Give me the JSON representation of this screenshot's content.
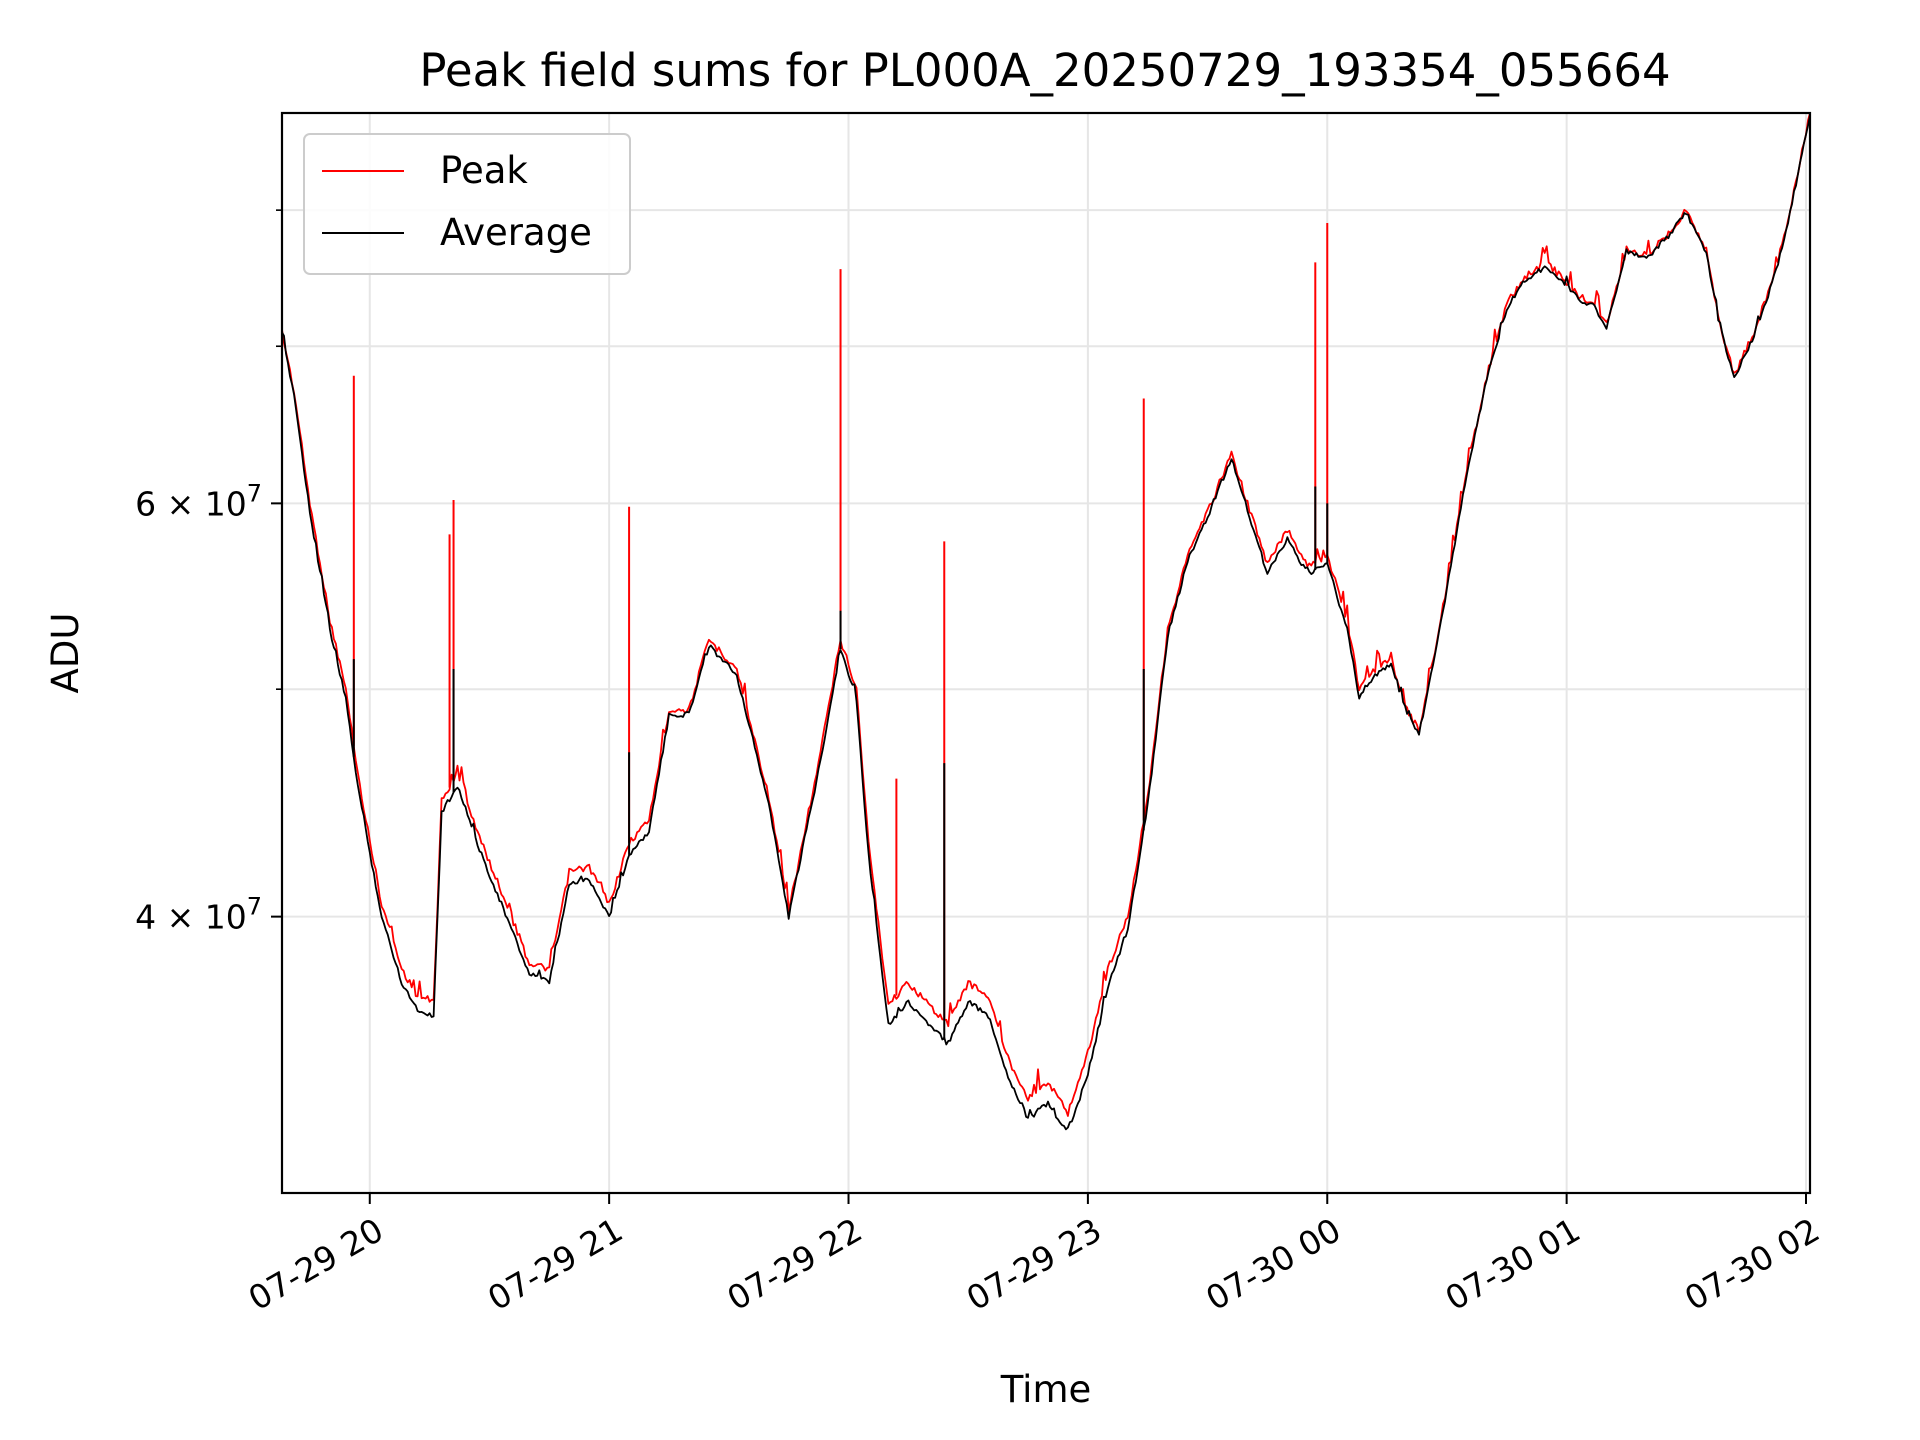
{
  "chart_data": {
    "type": "line",
    "title": "Peak field sums for PL000A_20250729_193354_055664",
    "xlabel": "Time",
    "ylabel": "ADU",
    "yscale": "log",
    "xlim": [
      "2025-07-29 19:38",
      "2025-07-30 02:01"
    ],
    "ylim": [
      30500000,
      88000000
    ],
    "grid": true,
    "legend_position": "top-left",
    "x_ticks": [
      "07-29 20",
      "07-29 21",
      "07-29 22",
      "07-29 23",
      "07-30 00",
      "07-30 01",
      "07-30 02"
    ],
    "y_ticks": [
      "4 × 10^7",
      "6 × 10^7"
    ],
    "series": [
      {
        "name": "Peak",
        "color": "#ff0000",
        "x": [
          "2025-07-29 19:38",
          "2025-07-29 19:41",
          "2025-07-29 19:45",
          "2025-07-29 19:50",
          "2025-07-29 19:54",
          "2025-07-29 19:57",
          "2025-07-29 19:59",
          "2025-07-29 20:03",
          "2025-07-29 20:08",
          "2025-07-29 20:12",
          "2025-07-29 20:16",
          "2025-07-29 20:18",
          "2025-07-29 20:22",
          "2025-07-29 20:28",
          "2025-07-29 20:33",
          "2025-07-29 20:40",
          "2025-07-29 20:45",
          "2025-07-29 20:50",
          "2025-07-29 20:55",
          "2025-07-29 21:00",
          "2025-07-29 21:05",
          "2025-07-29 21:10",
          "2025-07-29 21:15",
          "2025-07-29 21:20",
          "2025-07-29 21:25",
          "2025-07-29 21:32",
          "2025-07-29 21:40",
          "2025-07-29 21:45",
          "2025-07-29 21:52",
          "2025-07-29 21:58",
          "2025-07-29 22:02",
          "2025-07-29 22:05",
          "2025-07-29 22:10",
          "2025-07-29 22:15",
          "2025-07-29 22:20",
          "2025-07-29 22:25",
          "2025-07-29 22:30",
          "2025-07-29 22:35",
          "2025-07-29 22:40",
          "2025-07-29 22:45",
          "2025-07-29 22:50",
          "2025-07-29 22:55",
          "2025-07-29 23:00",
          "2025-07-29 23:05",
          "2025-07-29 23:10",
          "2025-07-29 23:15",
          "2025-07-29 23:20",
          "2025-07-29 23:25",
          "2025-07-29 23:30",
          "2025-07-29 23:36",
          "2025-07-29 23:40",
          "2025-07-29 23:45",
          "2025-07-29 23:50",
          "2025-07-29 23:55",
          "2025-07-30 00:00",
          "2025-07-30 00:05",
          "2025-07-30 00:08",
          "2025-07-30 00:12",
          "2025-07-30 00:16",
          "2025-07-30 00:20",
          "2025-07-30 00:23",
          "2025-07-30 00:28",
          "2025-07-30 00:35",
          "2025-07-30 00:40",
          "2025-07-30 00:45",
          "2025-07-30 00:50",
          "2025-07-30 00:55",
          "2025-07-30 01:00",
          "2025-07-30 01:03",
          "2025-07-30 01:07",
          "2025-07-30 01:10",
          "2025-07-30 01:15",
          "2025-07-30 01:20",
          "2025-07-30 01:25",
          "2025-07-30 01:30",
          "2025-07-30 01:35",
          "2025-07-30 01:38",
          "2025-07-30 01:42",
          "2025-07-30 01:47",
          "2025-07-30 01:52",
          "2025-07-30 01:56",
          "2025-07-30 02:01"
        ],
        "y": [
          71000000,
          67000000,
          60000000,
          53500000,
          50000000,
          46000000,
          44000000,
          40500000,
          38000000,
          37000000,
          36800000,
          44800000,
          46000000,
          43000000,
          41000000,
          38200000,
          38000000,
          41800000,
          42000000,
          40500000,
          43000000,
          44000000,
          49000000,
          49000000,
          52500000,
          51000000,
          45000000,
          40200000,
          46000000,
          52500000,
          50000000,
          43000000,
          36700000,
          37500000,
          36700000,
          36000000,
          37500000,
          37000000,
          34800000,
          33500000,
          34000000,
          33000000,
          35000000,
          38000000,
          40000000,
          45000000,
          53000000,
          57000000,
          59500000,
          63000000,
          60000000,
          56500000,
          58500000,
          56500000,
          57000000,
          53500000,
          50000000,
          51000000,
          51500000,
          49000000,
          48000000,
          53000000,
          62000000,
          68000000,
          73000000,
          75000000,
          76000000,
          74500000,
          73500000,
          73000000,
          71500000,
          77000000,
          76500000,
          78000000,
          80000000,
          77000000,
          72000000,
          68000000,
          71000000,
          75000000,
          80000000,
          88000000
        ],
        "spikes": [
          {
            "x": "2025-07-29 19:56",
            "y": 68000000
          },
          {
            "x": "2025-07-29 20:20",
            "y": 58200000
          },
          {
            "x": "2025-07-29 20:21",
            "y": 60200000
          },
          {
            "x": "2025-07-29 21:05",
            "y": 59800000
          },
          {
            "x": "2025-07-29 21:58",
            "y": 75500000
          },
          {
            "x": "2025-07-29 22:12",
            "y": 45800000
          },
          {
            "x": "2025-07-29 22:24",
            "y": 57800000
          },
          {
            "x": "2025-07-29 23:14",
            "y": 66500000
          },
          {
            "x": "2025-07-29 23:57",
            "y": 76000000
          },
          {
            "x": "2025-07-30 00:00",
            "y": 79000000
          }
        ]
      },
      {
        "name": "Average",
        "color": "#000000",
        "x": [
          "2025-07-29 19:38",
          "2025-07-29 19:41",
          "2025-07-29 19:45",
          "2025-07-29 19:50",
          "2025-07-29 19:54",
          "2025-07-29 19:57",
          "2025-07-29 19:59",
          "2025-07-29 20:03",
          "2025-07-29 20:08",
          "2025-07-29 20:12",
          "2025-07-29 20:16",
          "2025-07-29 20:18",
          "2025-07-29 20:22",
          "2025-07-29 20:28",
          "2025-07-29 20:33",
          "2025-07-29 20:40",
          "2025-07-29 20:45",
          "2025-07-29 20:50",
          "2025-07-29 20:55",
          "2025-07-29 21:00",
          "2025-07-29 21:05",
          "2025-07-29 21:10",
          "2025-07-29 21:15",
          "2025-07-29 21:20",
          "2025-07-29 21:25",
          "2025-07-29 21:32",
          "2025-07-29 21:40",
          "2025-07-29 21:45",
          "2025-07-29 21:52",
          "2025-07-29 21:58",
          "2025-07-29 22:02",
          "2025-07-29 22:05",
          "2025-07-29 22:10",
          "2025-07-29 22:15",
          "2025-07-29 22:20",
          "2025-07-29 22:25",
          "2025-07-29 22:30",
          "2025-07-29 22:35",
          "2025-07-29 22:40",
          "2025-07-29 22:45",
          "2025-07-29 22:50",
          "2025-07-29 22:55",
          "2025-07-29 23:00",
          "2025-07-29 23:05",
          "2025-07-29 23:10",
          "2025-07-29 23:15",
          "2025-07-29 23:20",
          "2025-07-29 23:25",
          "2025-07-29 23:30",
          "2025-07-29 23:36",
          "2025-07-29 23:40",
          "2025-07-29 23:45",
          "2025-07-29 23:50",
          "2025-07-29 23:55",
          "2025-07-30 00:00",
          "2025-07-30 00:05",
          "2025-07-30 00:08",
          "2025-07-30 00:12",
          "2025-07-30 00:16",
          "2025-07-30 00:20",
          "2025-07-30 00:23",
          "2025-07-30 00:28",
          "2025-07-30 00:35",
          "2025-07-30 00:40",
          "2025-07-30 00:45",
          "2025-07-30 00:50",
          "2025-07-30 00:55",
          "2025-07-30 01:00",
          "2025-07-30 01:03",
          "2025-07-30 01:07",
          "2025-07-30 01:10",
          "2025-07-30 01:15",
          "2025-07-30 01:20",
          "2025-07-30 01:25",
          "2025-07-30 01:30",
          "2025-07-30 01:35",
          "2025-07-30 01:38",
          "2025-07-30 01:42",
          "2025-07-30 01:47",
          "2025-07-30 01:52",
          "2025-07-30 01:56",
          "2025-07-30 02:01"
        ],
        "y": [
          70800000,
          66800000,
          59500000,
          53000000,
          49500000,
          45500000,
          43500000,
          40000000,
          37500000,
          36500000,
          36300000,
          44300000,
          45500000,
          42500000,
          40500000,
          37800000,
          37500000,
          41300000,
          41500000,
          40000000,
          42500000,
          43500000,
          48700000,
          48800000,
          52200000,
          50700000,
          44700000,
          40000000,
          45700000,
          52000000,
          49500000,
          42500000,
          36000000,
          36800000,
          36000000,
          35300000,
          36800000,
          36300000,
          34200000,
          32800000,
          33300000,
          32300000,
          34300000,
          37300000,
          39500000,
          44600000,
          52700000,
          56700000,
          59200000,
          62700000,
          59600000,
          56000000,
          58000000,
          56000000,
          56500000,
          53000000,
          49600000,
          50700000,
          51200000,
          48800000,
          47800000,
          52800000,
          61800000,
          67800000,
          72700000,
          74800000,
          75700000,
          74300000,
          73300000,
          72800000,
          71300000,
          76800000,
          76300000,
          77800000,
          79800000,
          76800000,
          71800000,
          67800000,
          70800000,
          74800000,
          79800000,
          87800000
        ],
        "spikes": [
          {
            "x": "2025-07-29 19:56",
            "y": 51500000
          },
          {
            "x": "2025-07-29 20:21",
            "y": 51000000
          },
          {
            "x": "2025-07-29 21:05",
            "y": 47000000
          },
          {
            "x": "2025-07-29 21:58",
            "y": 54000000
          },
          {
            "x": "2025-07-29 22:24",
            "y": 46500000
          },
          {
            "x": "2025-07-29 23:14",
            "y": 51000000
          },
          {
            "x": "2025-07-29 23:57",
            "y": 61000000
          },
          {
            "x": "2025-07-30 00:00",
            "y": 60000000
          }
        ]
      }
    ]
  }
}
